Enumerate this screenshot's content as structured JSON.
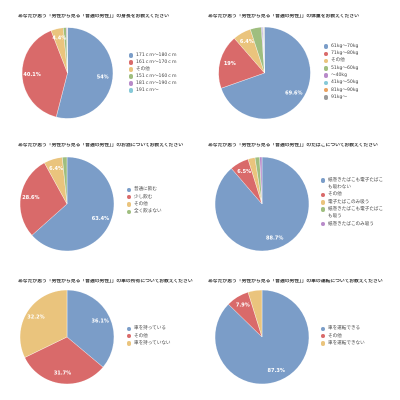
{
  "chart_data": [
    {
      "type": "pie",
      "title": "あなたが思う「男性から見る「普通の男性」」の身長をお教えください",
      "categories": [
        "171ｃｍ～180ｃｍ",
        "161ｃｍ～170ｃｍ",
        "その他",
        "151ｃｍ～160ｃｍ",
        "181ｃｍ～190ｃｍ",
        "191ｃｍ～"
      ],
      "values": [
        54,
        40.1,
        4.4,
        1.1,
        0.3,
        0.1
      ],
      "data_labels": [
        "54%",
        "40.1%",
        "4.4%",
        "",
        "",
        ""
      ],
      "colors": [
        "#7b9dc8",
        "#d96a6a",
        "#eac47d",
        "#9fbe7f",
        "#b88ac9",
        "#86c9d8"
      ],
      "legend_position": "right"
    },
    {
      "type": "pie",
      "title": "あなたが思う「男性から見る「普通の男性」」の体重をお教えください",
      "categories": [
        "61kg～70kg",
        "71kg～80kg",
        "その他",
        "51kg～60kg",
        "～40kg",
        "41kg～50kg",
        "81kg～90kg",
        "91kg～"
      ],
      "values": [
        69.6,
        19,
        6.4,
        3.9,
        0.4,
        0.3,
        0.2,
        0.2
      ],
      "data_labels": [
        "69.6%",
        "19%",
        "6.4%",
        "",
        "",
        "",
        "",
        ""
      ],
      "colors": [
        "#7b9dc8",
        "#d96a6a",
        "#eac47d",
        "#9fbe7f",
        "#b88ac9",
        "#86c9d8",
        "#eaa15f",
        "#9a9a9a"
      ],
      "legend_position": "right"
    },
    {
      "type": "pie",
      "title": "あなたが思う「男性から見る「普通の男性」」のお酒についてお教えください",
      "categories": [
        "普通に飲む",
        "少し飲む",
        "その他",
        "全く飲まない"
      ],
      "values": [
        63.4,
        28.6,
        6.4,
        1.6
      ],
      "data_labels": [
        "63.4%",
        "28.6%",
        "6.4%",
        ""
      ],
      "colors": [
        "#7b9dc8",
        "#d96a6a",
        "#eac47d",
        "#9fbe7f"
      ],
      "legend_position": "right"
    },
    {
      "type": "pie",
      "title": "あなたが思う「男性から見る「普通の男性」」のたばこについてお教えください",
      "categories": [
        "紙巻きたばこも電子たばこも吸わない",
        "その他",
        "電子たばこのみ吸う",
        "紙巻きたばこも電子たばこも吸う",
        "紙巻きたばこのみ吸う"
      ],
      "values": [
        88.7,
        6.5,
        2.4,
        1.6,
        0.8
      ],
      "data_labels": [
        "88.7%",
        "6.5%",
        "",
        "",
        ""
      ],
      "colors": [
        "#7b9dc8",
        "#d96a6a",
        "#eac47d",
        "#9fbe7f",
        "#b88ac9"
      ],
      "legend_position": "right"
    },
    {
      "type": "pie",
      "title": "あなたが思う「男性から見る「普通の男性」」の車の所有についてお教えください",
      "categories": [
        "車を持っている",
        "その他",
        "車を持っていない"
      ],
      "values": [
        36.1,
        31.7,
        32.2
      ],
      "data_labels": [
        "36.1%",
        "31.7%",
        "32.2%"
      ],
      "colors": [
        "#7b9dc8",
        "#d96a6a",
        "#eac47d"
      ],
      "legend_position": "right"
    },
    {
      "type": "pie",
      "title": "あなたが思う「男性から見る「普通の男性」」の車の運転についてお教えください",
      "categories": [
        "車を運転できる",
        "その他",
        "車を運転できない"
      ],
      "values": [
        87.3,
        7.9,
        4.8
      ],
      "data_labels": [
        "87.3%",
        "7.9%",
        ""
      ],
      "colors": [
        "#7b9dc8",
        "#d96a6a",
        "#eac47d"
      ],
      "legend_position": "right"
    }
  ]
}
